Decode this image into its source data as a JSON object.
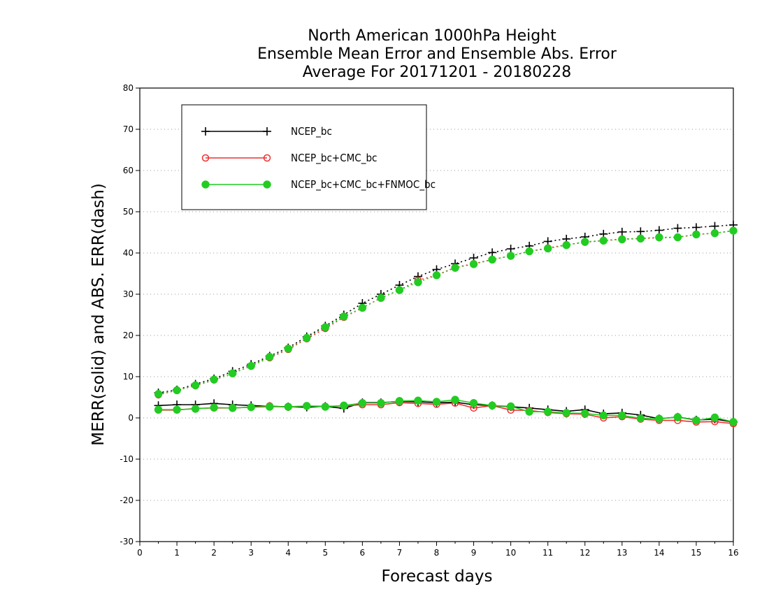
{
  "chart_data": {
    "type": "line",
    "title": [
      "North American 1000hPa Height",
      "Ensemble Mean Error and Ensemble Abs. Error",
      "Average For 20171201 - 20180228"
    ],
    "xlabel": "Forecast days",
    "ylabel": "MERR(solid) and ABS. ERR(dash)",
    "xlim": [
      0,
      16
    ],
    "ylim": [
      -30,
      80
    ],
    "xticks": [
      "0",
      "1",
      "2",
      "3",
      "4",
      "5",
      "6",
      "7",
      "8",
      "9",
      "10",
      "11",
      "12",
      "13",
      "14",
      "15",
      "16"
    ],
    "yticks": [
      "-30",
      "-20",
      "-10",
      "0",
      "10",
      "20",
      "30",
      "40",
      "50",
      "60",
      "70",
      "80"
    ],
    "grid": "horizontal-dotted",
    "legend_position": "top-left",
    "x": [
      0.5,
      1,
      1.5,
      2,
      2.5,
      3,
      3.5,
      4,
      4.5,
      5,
      5.5,
      6,
      6.5,
      7,
      7.5,
      8,
      8.5,
      9,
      9.5,
      10,
      10.5,
      11,
      11.5,
      12,
      12.5,
      13,
      13.5,
      14,
      14.5,
      15,
      15.5,
      16
    ],
    "series": [
      {
        "name": "NCEP_bc",
        "color": "#000000",
        "marker": "plus",
        "merr": [
          3.0,
          3.2,
          3.2,
          3.5,
          3.2,
          3.0,
          2.8,
          2.7,
          2.6,
          2.8,
          2.3,
          3.7,
          3.7,
          4.0,
          3.9,
          3.7,
          3.8,
          3.2,
          3.0,
          2.7,
          2.4,
          2.0,
          1.6,
          2.0,
          1.0,
          1.2,
          0.7,
          -0.2,
          0.2,
          -0.5,
          -0.3,
          -1.0
        ],
        "abs_err": [
          6.1,
          6.8,
          8.2,
          9.5,
          11.3,
          13.0,
          15.0,
          17.0,
          19.7,
          22.3,
          25.0,
          27.8,
          30.0,
          32.2,
          34.3,
          36.0,
          37.4,
          38.8,
          40.1,
          41.0,
          41.7,
          42.8,
          43.4,
          43.9,
          44.6,
          45.1,
          45.2,
          45.5,
          46.0,
          46.2,
          46.5,
          46.8
        ]
      },
      {
        "name": "NCEP_bc+CMC_bc",
        "color": "#ee3030",
        "marker": "open-circle",
        "merr": [
          1.9,
          1.9,
          2.3,
          2.4,
          2.4,
          2.6,
          2.9,
          2.6,
          2.9,
          2.8,
          2.9,
          3.2,
          3.2,
          3.7,
          3.5,
          3.3,
          3.6,
          2.4,
          3.0,
          1.9,
          1.8,
          1.3,
          1.0,
          0.9,
          0.0,
          0.3,
          -0.3,
          -0.6,
          -0.6,
          -1.0,
          -0.9,
          -1.4
        ],
        "abs_err": [
          5.6,
          6.7,
          7.8,
          9.2,
          10.8,
          12.6,
          14.6,
          16.6,
          19.2,
          21.7,
          24.4,
          26.7,
          29.1,
          31.0,
          33.4,
          34.6,
          36.5,
          37.4,
          38.4,
          39.3,
          40.4,
          41.2,
          42.0,
          42.6,
          43.0,
          43.4,
          43.5,
          43.7,
          43.8,
          44.5,
          44.8,
          45.4
        ]
      },
      {
        "name": "NCEP_bc+CMC_bc+FNMOC_bc",
        "color": "#22cc22",
        "marker": "filled-circle",
        "merr": [
          2.0,
          2.0,
          2.2,
          2.5,
          2.4,
          2.6,
          2.7,
          2.7,
          2.9,
          2.7,
          3.0,
          3.6,
          3.6,
          4.1,
          4.2,
          3.9,
          4.4,
          3.6,
          3.0,
          2.8,
          1.5,
          1.5,
          1.2,
          1.1,
          0.6,
          0.6,
          -0.1,
          -0.2,
          0.2,
          -0.6,
          0.1,
          -1.0
        ],
        "abs_err": [
          5.8,
          6.7,
          7.9,
          9.3,
          10.8,
          12.6,
          14.8,
          16.8,
          19.4,
          22.0,
          24.6,
          26.7,
          29.1,
          31.0,
          32.9,
          34.6,
          36.4,
          37.3,
          38.4,
          39.3,
          40.4,
          41.1,
          41.9,
          42.7,
          43.0,
          43.3,
          43.5,
          43.8,
          43.8,
          44.5,
          44.8,
          45.4
        ]
      }
    ]
  }
}
